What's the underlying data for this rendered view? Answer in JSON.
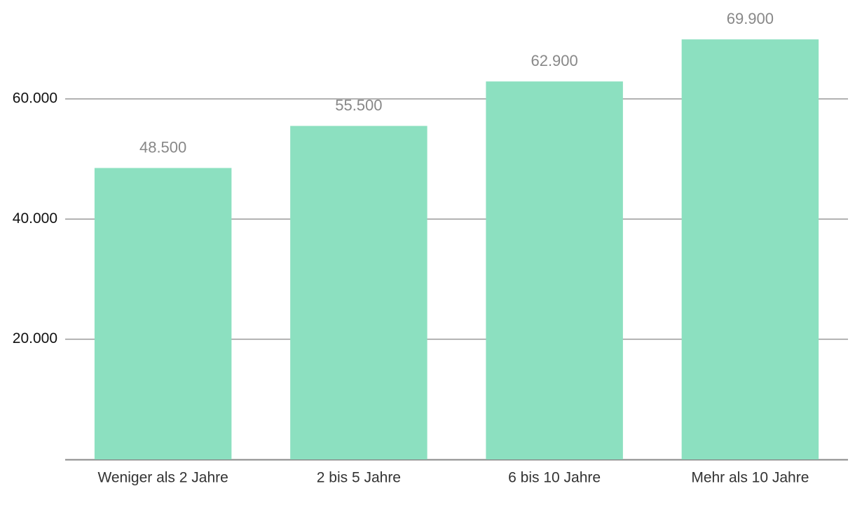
{
  "chart_data": {
    "type": "bar",
    "categories": [
      "Weniger als 2 Jahre",
      "2 bis 5 Jahre",
      "6 bis 10 Jahre",
      "Mehr als 10 Jahre"
    ],
    "values": [
      48500,
      55500,
      62900,
      69900
    ],
    "value_labels": [
      "48.500",
      "55.500",
      "62.900",
      "69.900"
    ],
    "color": "#8ce0c0",
    "ylim": [
      0,
      70000
    ],
    "yticks": [
      {
        "value": 20000,
        "label": "20.000"
      },
      {
        "value": 40000,
        "label": "40.000"
      },
      {
        "value": 60000,
        "label": "60.000"
      }
    ],
    "grid": true
  }
}
